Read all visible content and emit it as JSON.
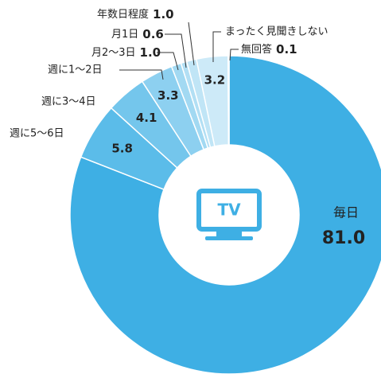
{
  "chart_data": {
    "type": "donut",
    "categories": [
      "毎日",
      "週に5〜6日",
      "週に3〜4日",
      "週に1〜2日",
      "月2〜3日",
      "月1日",
      "年数日程度",
      "まったく見聞きしない",
      "無回答"
    ],
    "values": [
      81.0,
      5.8,
      4.1,
      3.3,
      1.0,
      0.6,
      1.0,
      3.2,
      0.1
    ],
    "value_labels": [
      "81.0",
      "5.8",
      "4.1",
      "3.3",
      "1.0",
      "0.6",
      "1.0",
      "3.2",
      "0.1"
    ],
    "colors": [
      "#3eafe4",
      "#5bbce9",
      "#74c6ec",
      "#8dd0f0",
      "#a2d9f2",
      "#b2dff4",
      "#c0e5f6",
      "#cdeaf8",
      "#dcf0fa"
    ],
    "center_icon_label": "TV"
  }
}
